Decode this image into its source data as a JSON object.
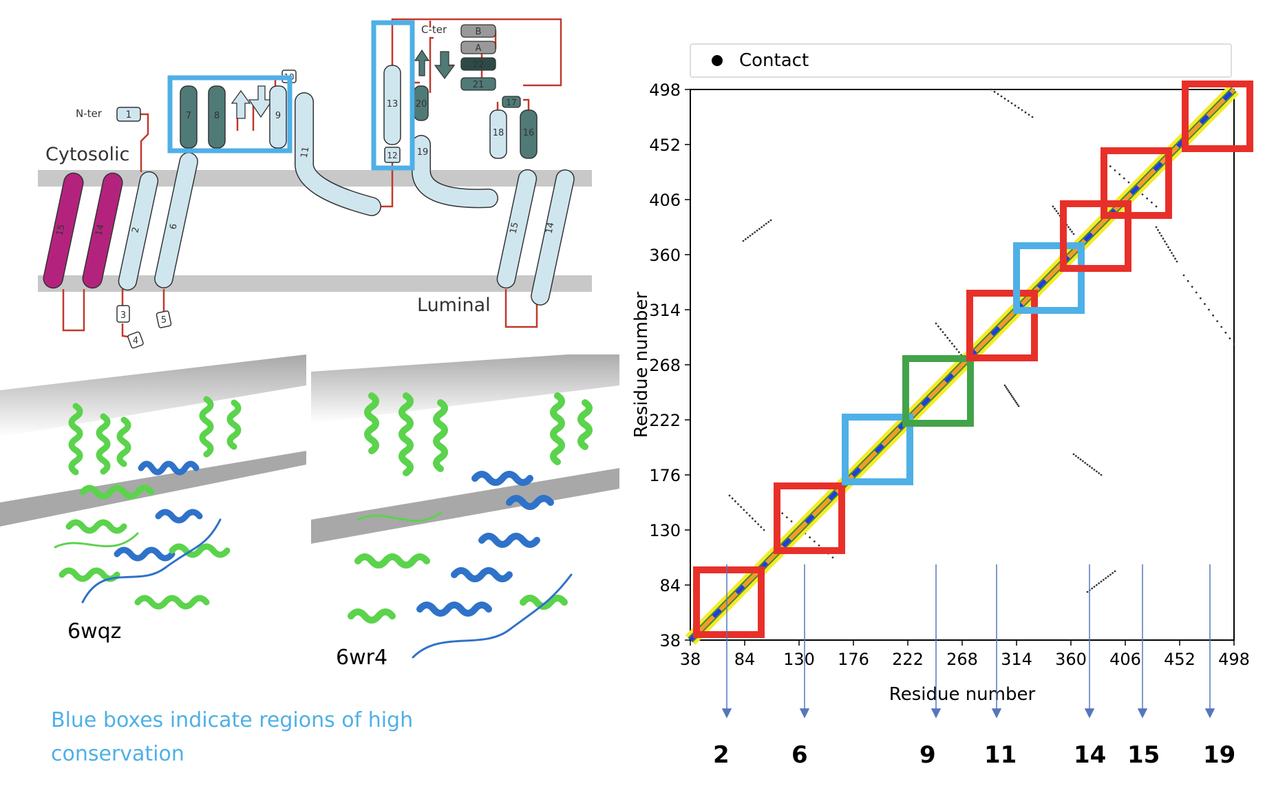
{
  "topology": {
    "n_ter": "N-ter",
    "c_ter": "C-ter",
    "cytosolic": "Cytosolic",
    "luminal": "Luminal",
    "elements": [
      "1",
      "2",
      "3",
      "4",
      "5",
      "6",
      "7",
      "8",
      "9",
      "10",
      "11",
      "12",
      "13",
      "14",
      "15",
      "16",
      "17",
      "18",
      "19",
      "20",
      "21",
      "22",
      "A",
      "B"
    ]
  },
  "structures": {
    "left_label": "6wqz",
    "right_label": "6wr4"
  },
  "caption": "Blue boxes indicate regions of high conservation",
  "contact_map": {
    "legend_label": "Contact",
    "xlabel": "Residue number",
    "ylabel": "Residue number",
    "ticks": [
      "38",
      "84",
      "130",
      "176",
      "222",
      "268",
      "314",
      "360",
      "406",
      "452",
      "498"
    ]
  },
  "helix_markers": [
    "2",
    "6",
    "9",
    "11",
    "14",
    "15",
    "19"
  ],
  "colors": {
    "red_box": "#e8302a",
    "blue_box": "#4fb0e6",
    "green_box": "#43a34a",
    "membrane": "#c8c8c8",
    "helix_light": "#cfe6ef",
    "helix_dark": "#4f7a76",
    "helix_magenta": "#b3237d",
    "loop": "#c0392b",
    "protein_green": "#5bd34c",
    "protein_blue": "#2f72c9",
    "arrow": "#5577bb"
  }
}
